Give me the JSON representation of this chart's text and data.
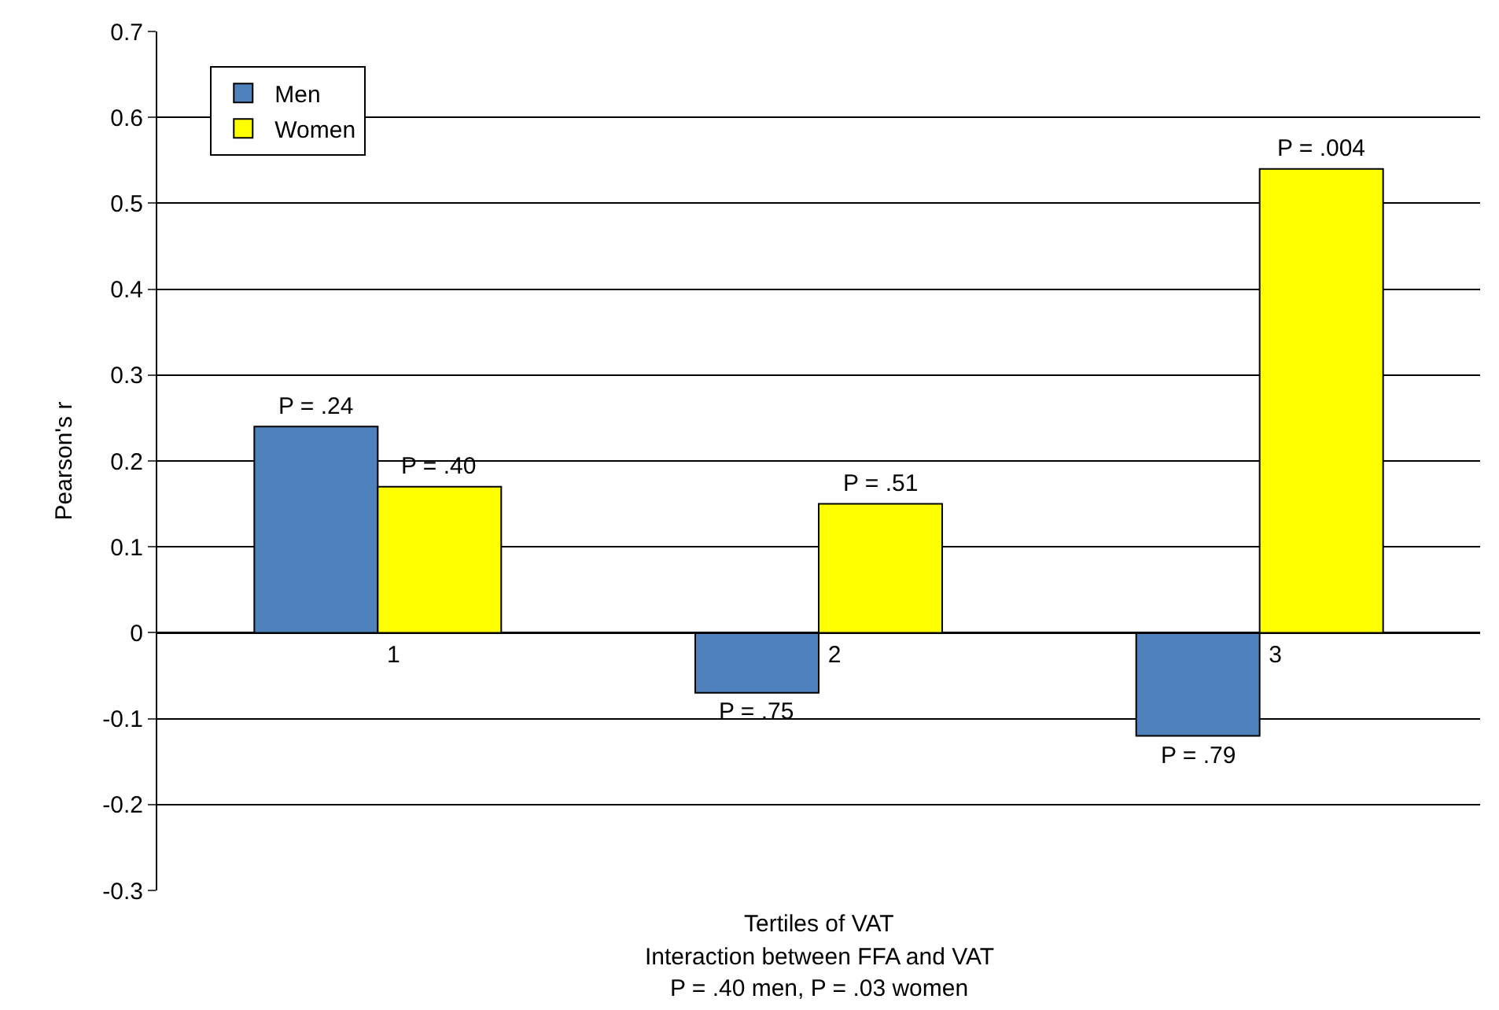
{
  "chart_data": {
    "type": "bar",
    "ylabel": "Pearson's r",
    "xlabel": "Tertiles of VAT",
    "categories": [
      "1",
      "2",
      "3"
    ],
    "series": [
      {
        "name": "Men",
        "color": "#4f81bd",
        "values": [
          0.24,
          -0.07,
          -0.12
        ]
      },
      {
        "name": "Women",
        "color": "#ffff00",
        "values": [
          0.17,
          0.15,
          0.54
        ]
      }
    ],
    "ylim": [
      -0.3,
      0.7
    ],
    "yticks": [
      -0.3,
      -0.2,
      -0.1,
      0,
      0.1,
      0.2,
      0.3,
      0.4,
      0.5,
      0.6,
      0.7
    ],
    "grid": "y",
    "legend": "top left",
    "annotations": [
      "P = .24",
      "P = .75",
      "P = .79",
      "P = .40",
      "P = .51",
      "P = .004",
      "Interaction between FFA and VAT",
      "P = .40 men, P = .03 women"
    ]
  }
}
